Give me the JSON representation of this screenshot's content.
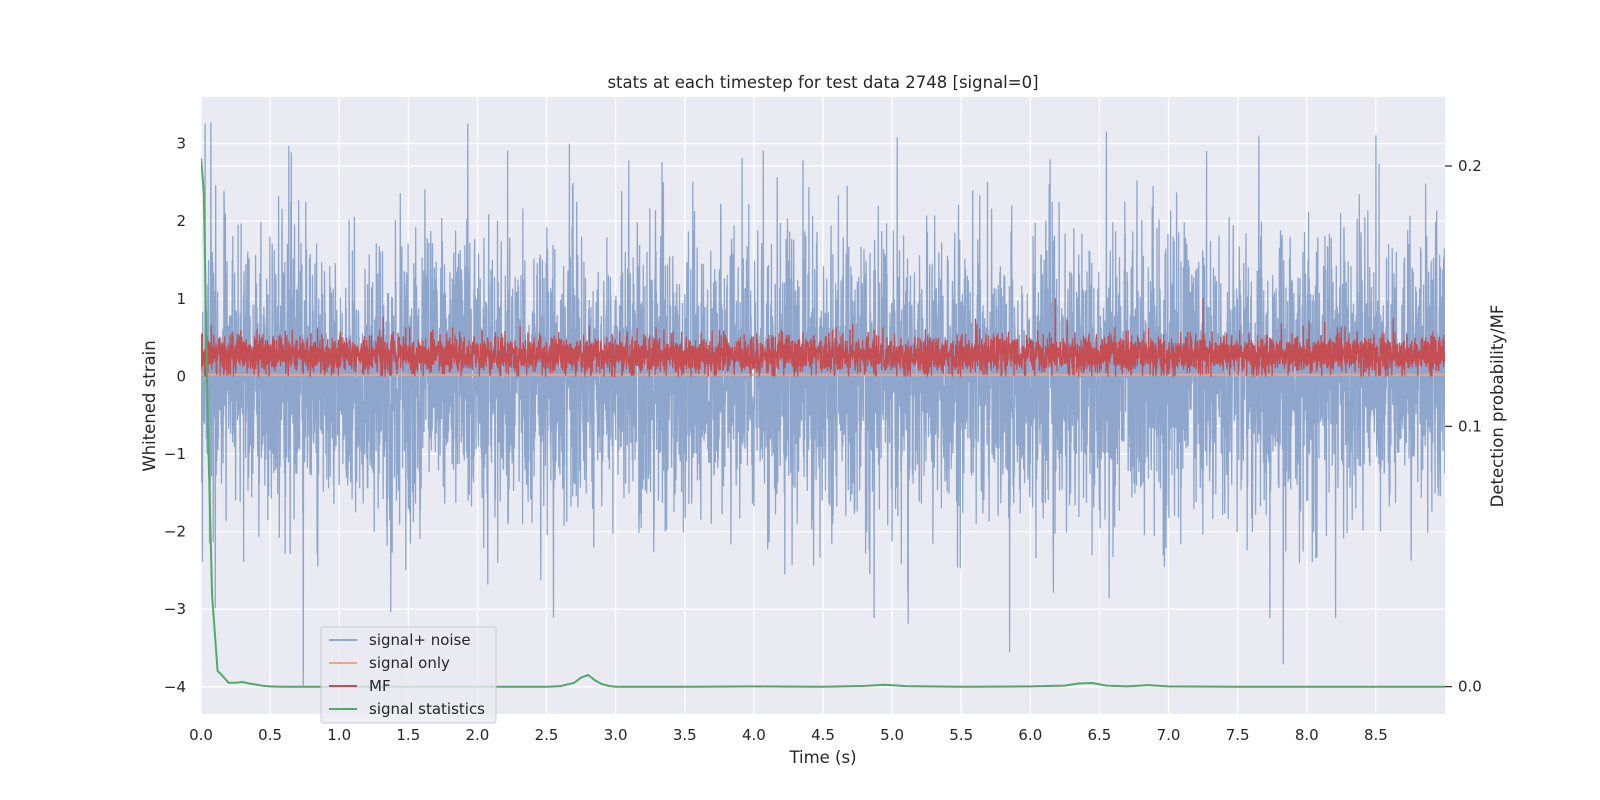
{
  "chart_data": {
    "type": "line",
    "title": "stats at each timestep for test data 2748 [signal=0]",
    "xlabel": "Time (s)",
    "ylabel": "Whitened strain",
    "y2label": "Detection probability/MF",
    "xlim": [
      0.0,
      9.0
    ],
    "ylim": [
      -4.35,
      3.6
    ],
    "y2lim": [
      -0.0105,
      0.2265
    ],
    "xticks": [
      0.0,
      0.5,
      1.0,
      1.5,
      2.0,
      2.5,
      3.0,
      3.5,
      4.0,
      4.5,
      5.0,
      5.5,
      6.0,
      6.5,
      7.0,
      7.5,
      8.0,
      8.5
    ],
    "xtick_labels": [
      "0.0",
      "0.5",
      "1.0",
      "1.5",
      "2.0",
      "2.5",
      "3.0",
      "3.5",
      "4.0",
      "4.5",
      "5.0",
      "5.5",
      "6.0",
      "6.5",
      "7.0",
      "7.5",
      "8.0",
      "8.5"
    ],
    "yticks": [
      3,
      2,
      1,
      0,
      -1,
      -2,
      -3,
      -4
    ],
    "ytick_labels": [
      "3",
      "2",
      "1",
      "0",
      "−1",
      "−2",
      "−3",
      "−4"
    ],
    "y2ticks": [
      0.2,
      0.1,
      0.0
    ],
    "y2tick_labels": [
      "0.2",
      "0.1",
      "0.0"
    ],
    "grid": true,
    "legend_position": "bottom-left",
    "series": [
      {
        "name": "signal+ noise",
        "axis": "left",
        "color": "#8fa6cc",
        "kind": "noise",
        "seed": 2748,
        "sample_rate_hz": 600,
        "std": 0.9,
        "spikes": [
          {
            "x": 0.74,
            "y": -4.0
          },
          {
            "x": 0.03,
            "y": 3.25
          },
          {
            "x": 1.93,
            "y": 3.25
          },
          {
            "x": 2.55,
            "y": -3.1
          },
          {
            "x": 5.85,
            "y": -3.55
          },
          {
            "x": 6.55,
            "y": 3.15
          },
          {
            "x": 7.83,
            "y": -3.7
          },
          {
            "x": 8.5,
            "y": 3.1
          }
        ]
      },
      {
        "name": "signal only",
        "axis": "left",
        "color": "#e8a58c",
        "kind": "constant",
        "value": 0.02
      },
      {
        "name": "MF",
        "axis": "left",
        "color": "#c44e52",
        "kind": "noise",
        "seed": 91,
        "sample_rate_hz": 600,
        "base": 0.28,
        "std": 0.13,
        "clip_min": 0.0,
        "spikes": [
          {
            "x": 6.18,
            "y": 1.0
          },
          {
            "x": 7.25,
            "y": 1.0
          }
        ]
      },
      {
        "name": "signal statistics",
        "axis": "right",
        "color": "#55a868",
        "kind": "points",
        "x": [
          0.0,
          0.02,
          0.05,
          0.08,
          0.12,
          0.15,
          0.2,
          0.25,
          0.3,
          0.35,
          0.4,
          0.45,
          0.5,
          0.6,
          0.8,
          1.0,
          1.5,
          2.0,
          2.5,
          2.6,
          2.7,
          2.75,
          2.8,
          2.85,
          2.9,
          2.95,
          3.0,
          3.5,
          4.0,
          4.5,
          4.8,
          4.95,
          5.1,
          5.5,
          6.0,
          6.25,
          6.35,
          6.45,
          6.55,
          6.7,
          6.85,
          7.0,
          7.5,
          8.0,
          8.5,
          9.0
        ],
        "y": [
          0.203,
          0.19,
          0.1,
          0.035,
          0.006,
          0.0045,
          0.0015,
          0.0015,
          0.0018,
          0.0012,
          0.0008,
          0.0003,
          0.0001,
          0.0,
          0.0,
          0.0,
          0.0,
          0.0,
          0.0,
          0.0002,
          0.0015,
          0.0035,
          0.0045,
          0.0025,
          0.001,
          0.0003,
          0.0,
          0.0,
          0.0001,
          0.0,
          0.0003,
          0.0007,
          0.0002,
          0.0,
          0.0001,
          0.0004,
          0.0012,
          0.0014,
          0.0004,
          0.0001,
          0.0006,
          0.0001,
          0.0,
          0.0,
          0.0,
          0.0
        ]
      }
    ]
  }
}
